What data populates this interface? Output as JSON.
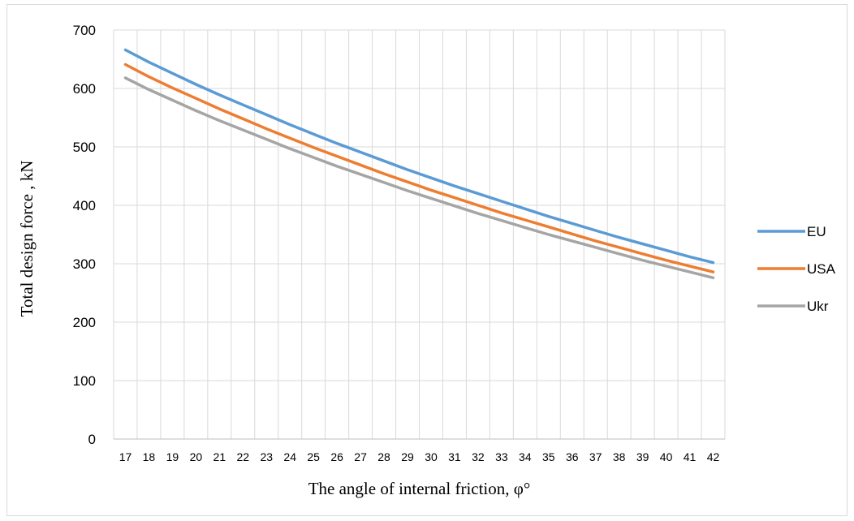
{
  "chart_data": {
    "type": "line",
    "xlabel": "The angle of internal friction, φ°",
    "ylabel": "Total design force , kN",
    "ylim": [
      0,
      700
    ],
    "yticks": [
      0,
      100,
      200,
      300,
      400,
      500,
      600,
      700
    ],
    "x": [
      17,
      18,
      19,
      20,
      21,
      22,
      23,
      24,
      25,
      26,
      27,
      28,
      29,
      30,
      31,
      32,
      33,
      34,
      35,
      36,
      37,
      38,
      39,
      40,
      41,
      42
    ],
    "grid": true,
    "legend_position": "right",
    "series": [
      {
        "name": "EU",
        "color": "#5b9bd5",
        "values": [
          666,
          645,
          626,
          607,
          589,
          572,
          555,
          538,
          522,
          506,
          491,
          476,
          461,
          447,
          433,
          420,
          407,
          394,
          381,
          369,
          357,
          345,
          334,
          323,
          312,
          302
        ]
      },
      {
        "name": "USA",
        "color": "#ed7d31",
        "values": [
          641,
          620,
          601,
          583,
          565,
          548,
          531,
          515,
          499,
          484,
          469,
          454,
          440,
          426,
          413,
          400,
          387,
          375,
          363,
          351,
          339,
          328,
          317,
          306,
          296,
          286
        ]
      },
      {
        "name": "Ukr",
        "color": "#a5a5a5",
        "values": [
          618,
          598,
          580,
          562,
          545,
          529,
          513,
          497,
          482,
          467,
          453,
          439,
          425,
          412,
          399,
          386,
          374,
          362,
          350,
          339,
          328,
          317,
          306,
          296,
          286,
          276
        ]
      }
    ]
  }
}
